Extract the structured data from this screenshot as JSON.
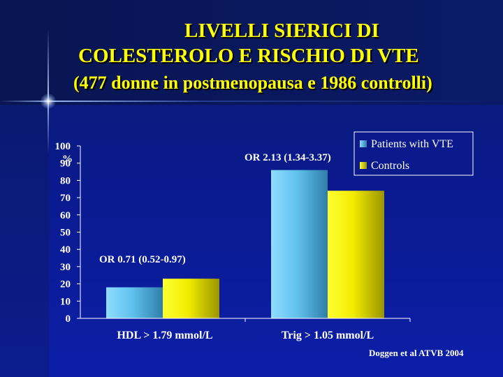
{
  "title": {
    "line1": "LIVELLI SIERICI DI",
    "line2": "COLESTEROLO E RISCHIO DI VTE",
    "line3": "(477 donne in postmenopausa e 1986 controlli)"
  },
  "credit": "Doggen et al ATVB 2004",
  "colors": {
    "title": "#ffff00",
    "patients": "#5fc3ef",
    "controls": "#f4ef00",
    "background": "#0a1a8c"
  },
  "chart_data": {
    "type": "bar",
    "categories": [
      "HDL > 1.79 mmol/L",
      "Trig > 1.05 mmol/L"
    ],
    "series": [
      {
        "name": "Patients with VTE",
        "values": [
          18,
          86
        ]
      },
      {
        "name": "Controls",
        "values": [
          23,
          74
        ]
      }
    ],
    "ylim": [
      0,
      100
    ],
    "yticks": [
      0,
      10,
      20,
      30,
      40,
      50,
      60,
      70,
      80,
      90,
      100
    ],
    "ylabel": "%",
    "annotations": [
      "OR 0.71 (0.52-0.97)",
      "OR 2.13 (1.34-3.37)"
    ],
    "legend": "top-right",
    "grid": false
  }
}
